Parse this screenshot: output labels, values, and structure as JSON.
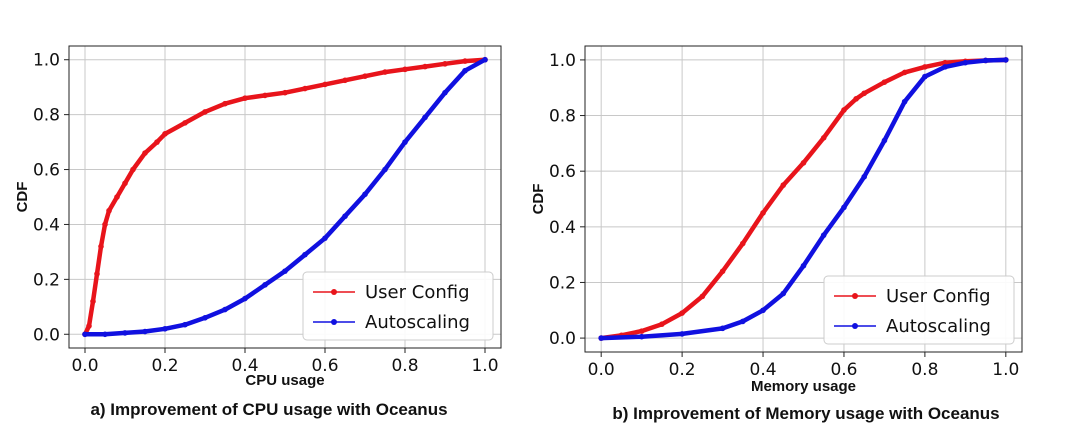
{
  "chart_data": [
    {
      "type": "line",
      "caption": "a) Improvement of CPU usage with Oceanus",
      "xlabel": "CPU usage",
      "ylabel": "CDF",
      "xlim": [
        -0.04,
        1.04
      ],
      "ylim": [
        -0.05,
        1.05
      ],
      "xticks": [
        "0.0",
        "0.2",
        "0.4",
        "0.6",
        "0.8",
        "1.0"
      ],
      "yticks": [
        "0.0",
        "0.2",
        "0.4",
        "0.6",
        "0.8",
        "1.0"
      ],
      "grid": true,
      "legend_position": "bottom-right",
      "series": [
        {
          "name": "User Config",
          "color": "#e8141b",
          "x": [
            0.0,
            0.01,
            0.02,
            0.03,
            0.04,
            0.05,
            0.06,
            0.08,
            0.1,
            0.12,
            0.15,
            0.18,
            0.2,
            0.25,
            0.3,
            0.35,
            0.4,
            0.45,
            0.5,
            0.55,
            0.6,
            0.65,
            0.7,
            0.75,
            0.8,
            0.85,
            0.9,
            0.95,
            1.0
          ],
          "y": [
            0.0,
            0.03,
            0.12,
            0.22,
            0.32,
            0.4,
            0.45,
            0.5,
            0.55,
            0.6,
            0.66,
            0.7,
            0.73,
            0.77,
            0.81,
            0.84,
            0.86,
            0.87,
            0.88,
            0.895,
            0.91,
            0.925,
            0.94,
            0.955,
            0.965,
            0.975,
            0.985,
            0.995,
            1.0
          ]
        },
        {
          "name": "Autoscaling",
          "color": "#1010e0",
          "x": [
            0.0,
            0.05,
            0.1,
            0.15,
            0.2,
            0.25,
            0.3,
            0.35,
            0.4,
            0.45,
            0.5,
            0.55,
            0.6,
            0.65,
            0.7,
            0.75,
            0.8,
            0.85,
            0.9,
            0.95,
            1.0
          ],
          "y": [
            0.0,
            0.0,
            0.005,
            0.01,
            0.02,
            0.035,
            0.06,
            0.09,
            0.13,
            0.18,
            0.23,
            0.29,
            0.35,
            0.43,
            0.51,
            0.6,
            0.7,
            0.79,
            0.88,
            0.96,
            1.0
          ]
        }
      ]
    },
    {
      "type": "line",
      "caption": "b) Improvement of Memory usage with Oceanus",
      "xlabel": "Memory usage",
      "ylabel": "CDF",
      "xlim": [
        -0.04,
        1.04
      ],
      "ylim": [
        -0.05,
        1.05
      ],
      "xticks": [
        "0.0",
        "0.2",
        "0.4",
        "0.6",
        "0.8",
        "1.0"
      ],
      "yticks": [
        "0.0",
        "0.2",
        "0.4",
        "0.6",
        "0.8",
        "1.0"
      ],
      "grid": true,
      "legend_position": "bottom-right",
      "series": [
        {
          "name": "User Config",
          "color": "#e8141b",
          "x": [
            0.0,
            0.05,
            0.1,
            0.15,
            0.2,
            0.25,
            0.3,
            0.35,
            0.4,
            0.45,
            0.5,
            0.55,
            0.6,
            0.63,
            0.65,
            0.7,
            0.75,
            0.8,
            0.85,
            0.9,
            0.95,
            1.0
          ],
          "y": [
            0.0,
            0.01,
            0.025,
            0.05,
            0.09,
            0.15,
            0.24,
            0.34,
            0.45,
            0.55,
            0.63,
            0.72,
            0.82,
            0.86,
            0.88,
            0.92,
            0.955,
            0.975,
            0.99,
            0.995,
            0.998,
            1.0
          ]
        },
        {
          "name": "Autoscaling",
          "color": "#1010e0",
          "x": [
            0.0,
            0.1,
            0.2,
            0.3,
            0.35,
            0.4,
            0.45,
            0.5,
            0.55,
            0.6,
            0.65,
            0.7,
            0.75,
            0.8,
            0.85,
            0.9,
            0.95,
            1.0
          ],
          "y": [
            0.0,
            0.005,
            0.015,
            0.035,
            0.06,
            0.1,
            0.16,
            0.26,
            0.37,
            0.47,
            0.58,
            0.71,
            0.85,
            0.94,
            0.975,
            0.99,
            0.998,
            1.0
          ]
        }
      ]
    }
  ]
}
